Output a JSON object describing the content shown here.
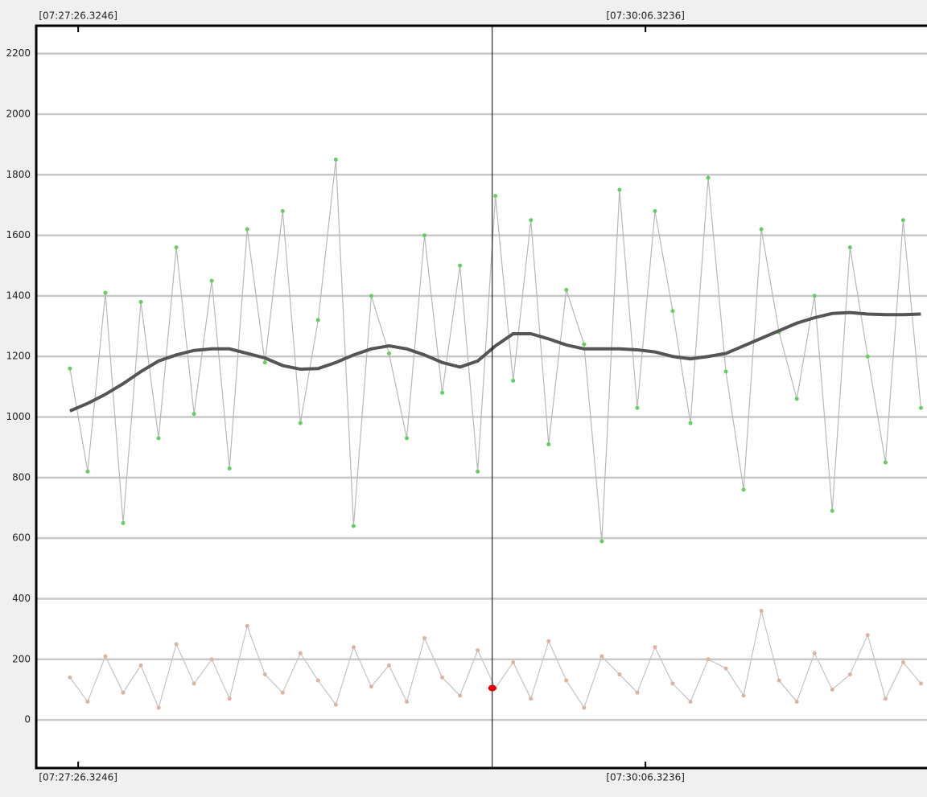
{
  "chart_data": {
    "type": "line",
    "x": [
      26844,
      26849,
      26854,
      26859,
      26864,
      26869,
      26874,
      26879,
      26884,
      26889,
      26894,
      26899,
      26904,
      26909,
      26914,
      26919,
      26924,
      26929,
      26934,
      26939,
      26944,
      26949,
      26954,
      26959,
      26964,
      26969,
      26974,
      26979,
      26984,
      26989,
      26994,
      26999,
      27004,
      27009,
      27014,
      27019,
      27024,
      27029,
      27034,
      27039,
      27044,
      27049,
      27054,
      27059,
      27064,
      27069,
      27074,
      27079,
      27084
    ],
    "series": [
      {
        "color": "#66cc66",
        "line_color": "#b8b8b8",
        "values": [
          1160,
          820,
          1410,
          650,
          1380,
          930,
          1560,
          1010,
          1450,
          830,
          1620,
          1180,
          1680,
          980,
          1320,
          1850,
          640,
          1400,
          1210,
          930,
          1600,
          1080,
          1500,
          820,
          1730,
          1120,
          1650,
          910,
          1420,
          1240,
          590,
          1750,
          1030,
          1680,
          1350,
          980,
          1790,
          1150,
          760,
          1620,
          1280,
          1060,
          1400,
          690,
          1560,
          1200,
          850,
          1650,
          1030
        ]
      },
      {
        "color": "#555555",
        "line_color": "#555555",
        "values": [
          1020,
          1045,
          1075,
          1110,
          1150,
          1185,
          1205,
          1220,
          1225,
          1225,
          1210,
          1195,
          1170,
          1158,
          1160,
          1180,
          1205,
          1225,
          1235,
          1225,
          1205,
          1180,
          1165,
          1185,
          1235,
          1275,
          1275,
          1258,
          1238,
          1225,
          1225,
          1225,
          1222,
          1215,
          1200,
          1192,
          1200,
          1210,
          1235,
          1260,
          1285,
          1310,
          1328,
          1342,
          1345,
          1340,
          1338,
          1338,
          1340
        ]
      },
      {
        "color": "#dcb4a0",
        "line_color": "#c4c4c4",
        "values": [
          140,
          60,
          210,
          90,
          180,
          40,
          250,
          120,
          200,
          70,
          310,
          150,
          90,
          220,
          130,
          50,
          240,
          110,
          180,
          60,
          270,
          140,
          80,
          230,
          105,
          190,
          70,
          260,
          130,
          40,
          210,
          150,
          90,
          240,
          120,
          60,
          200,
          170,
          80,
          360,
          130,
          60,
          220,
          100,
          150,
          280,
          70,
          190,
          120
        ]
      }
    ],
    "cursor": {
      "x": 26963.1,
      "value": 105,
      "color": "#e00000"
    },
    "xlim": [
      26834.49,
      27086.4
    ],
    "xticks": [
      {
        "value": 26846.3246,
        "label": "[07:27:26.3246]"
      },
      {
        "value": 27006.3236,
        "label": "[07:30:06.3236]"
      }
    ],
    "ylim": [
      -159,
      2292
    ],
    "yticks": [
      0,
      200,
      400,
      600,
      800,
      1000,
      1200,
      1400,
      1600,
      1800,
      2000,
      2200
    ],
    "grid": true
  }
}
